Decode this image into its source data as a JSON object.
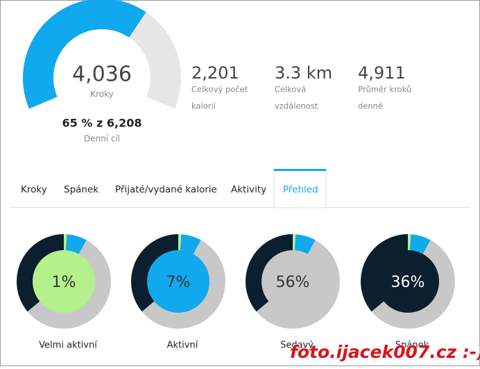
{
  "gauge": {
    "value": 4036,
    "value_label": "4,036",
    "unit": "Kroky",
    "goal": 6208,
    "goal_label": "65 % z 6,208",
    "goal_caption": "Denní cíl",
    "color": "#11a9ed",
    "track_color": "#e6e6e6"
  },
  "stats": [
    {
      "value": "2,201",
      "caption": [
        "Celkový počet",
        "kalorií"
      ]
    },
    {
      "value": "3.3 km",
      "caption": [
        "Celková",
        "vzdálenost"
      ]
    },
    {
      "value": "4,911",
      "caption": [
        "Průměr kroků",
        "denně"
      ]
    }
  ],
  "tabs": [
    "Kroky",
    "Spánek",
    "Přijaté/vydané kalorie",
    "Aktivity",
    "Přehled"
  ],
  "active_tab": 4,
  "breakdown": {
    "segments": [
      {
        "name": "Velmi aktivní",
        "value": 1,
        "value_label": "1%",
        "color": "#b4f08c"
      },
      {
        "name": "Aktivní",
        "value": 7,
        "value_label": "7%",
        "color": "#11a9ed"
      },
      {
        "name": "Sedavý",
        "value": 56,
        "value_label": "56%",
        "color": "#c8c8c8"
      },
      {
        "name": "Spánek",
        "value": 36,
        "value_label": "36%",
        "color": "#0b1f2e"
      }
    ]
  },
  "watermark": "foto.ijacek007.cz :-)"
}
